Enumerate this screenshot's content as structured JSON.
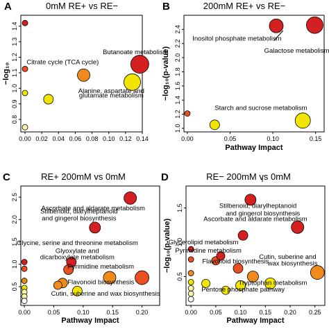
{
  "colors": {
    "dark_red": "#d42020",
    "red_orange": "#e8501f",
    "orange": "#f08a1c",
    "yellow": "#f2e600",
    "pale_yellow": "#fbf7a8",
    "white": "#ffffff",
    "edge": "#000000"
  },
  "chart_data": [
    {
      "type": "scatter",
      "letter": "A",
      "title": "0mM RE+ vs RE−",
      "xlabel": "",
      "ylabel": "−log₁₀",
      "xlim": [
        -0.005,
        0.14
      ],
      "ylim": [
        0.72,
        1.47
      ],
      "xticks": [
        "0.00",
        "0.02",
        "0.04",
        "0.06",
        "0.08",
        "0.10",
        "0.12",
        "0.14"
      ],
      "yticks": [
        "0.8",
        "0.9",
        "1.0",
        "1.1",
        "1.2",
        "1.3",
        "1.4"
      ],
      "points": [
        {
          "x": 0.0,
          "y": 1.42,
          "size": 4,
          "color": "#d42020"
        },
        {
          "x": 0.0,
          "y": 1.125,
          "size": 4,
          "color": "#e8501f"
        },
        {
          "x": 0.0,
          "y": 0.97,
          "size": 4,
          "color": "#f2e600"
        },
        {
          "x": 0.0,
          "y": 0.75,
          "size": 4,
          "color": "#fbf7a8"
        },
        {
          "x": 0.028,
          "y": 0.93,
          "size": 7,
          "color": "#f2e600"
        },
        {
          "x": 0.07,
          "y": 1.085,
          "size": 9,
          "color": "#f08a1c"
        },
        {
          "x": 0.128,
          "y": 1.04,
          "size": 12,
          "color": "#f2e600"
        },
        {
          "x": 0.137,
          "y": 1.155,
          "size": 13,
          "color": "#d42020"
        }
      ],
      "annotations": [
        {
          "text": "Butanoate metabolism",
          "x": 0.132,
          "y": 1.22
        },
        {
          "text": "Citrate cycle (TCA cycle)",
          "x": 0.045,
          "y": 1.155
        },
        {
          "text": "Alanine, aspartate and",
          "x": 0.103,
          "y": 0.97
        },
        {
          "text": "glutamate metabolism",
          "x": 0.103,
          "y": 0.94
        }
      ]
    },
    {
      "type": "scatter",
      "letter": "B",
      "title": "200mM RE+ vs RE−",
      "xlabel": "Pathway Impact",
      "ylabel": "−log₁₀(p-value)",
      "xlim": [
        -0.004,
        0.16
      ],
      "ylim": [
        0.95,
        2.6
      ],
      "xticks": [
        "0.00",
        "0.05",
        "0.10",
        "0.15"
      ],
      "yticks": [
        "1.0",
        "1.2",
        "1.4",
        "1.6",
        "1.8",
        "2.0",
        "2.2",
        "2.4"
      ],
      "points": [
        {
          "x": 0.0,
          "y": 1.21,
          "size": 4,
          "color": "#e8501f"
        },
        {
          "x": 0.032,
          "y": 1.05,
          "size": 7,
          "color": "#f2e600"
        },
        {
          "x": 0.104,
          "y": 2.45,
          "size": 10,
          "color": "#d42020"
        },
        {
          "x": 0.135,
          "y": 1.11,
          "size": 11,
          "color": "#f2e600"
        },
        {
          "x": 0.149,
          "y": 2.46,
          "size": 12,
          "color": "#d42020"
        }
      ],
      "annotations": [
        {
          "text": "Inositol phosphate metabolism",
          "x": 0.058,
          "y": 2.24
        },
        {
          "text": "Galactose metabolism",
          "x": 0.128,
          "y": 2.07
        },
        {
          "text": "Starch and sucrose metabolism",
          "x": 0.086,
          "y": 1.26
        }
      ]
    },
    {
      "type": "scatter",
      "letter": "C",
      "title": "RE+ 200mM vs 0mM",
      "xlabel": "Pathway Impact",
      "ylabel": "",
      "xlim": [
        -0.006,
        0.23
      ],
      "ylim": [
        0.08,
        2.75
      ],
      "xticks": [
        "0.00",
        "0.05",
        "0.10",
        "0.15",
        "0.20"
      ],
      "yticks": [
        "0.5",
        "1.0",
        "1.5",
        "2.0",
        "2.5"
      ],
      "points": [
        {
          "x": 0.0,
          "y": 1.05,
          "size": 4,
          "color": "#d42020"
        },
        {
          "x": 0.0,
          "y": 0.9,
          "size": 4,
          "color": "#e8501f"
        },
        {
          "x": 0.0,
          "y": 0.63,
          "size": 4,
          "color": "#f08a1c"
        },
        {
          "x": 0.0,
          "y": 0.47,
          "size": 4,
          "color": "#f2e600"
        },
        {
          "x": 0.0,
          "y": 0.38,
          "size": 4,
          "color": "#fbf7a8"
        },
        {
          "x": 0.0,
          "y": 0.28,
          "size": 4,
          "color": "#fbf7a8"
        },
        {
          "x": 0.0,
          "y": 0.18,
          "size": 4,
          "color": "#ffffff"
        },
        {
          "x": 0.057,
          "y": 0.53,
          "size": 6,
          "color": "#f08a1c"
        },
        {
          "x": 0.065,
          "y": 0.58,
          "size": 7,
          "color": "#f08a1c"
        },
        {
          "x": 0.075,
          "y": 0.88,
          "size": 7,
          "color": "#e8501f"
        },
        {
          "x": 0.08,
          "y": 1.05,
          "size": 7,
          "color": "#d42020"
        },
        {
          "x": 0.09,
          "y": 0.4,
          "size": 7,
          "color": "#f2e600"
        },
        {
          "x": 0.12,
          "y": 1.82,
          "size": 8,
          "color": "#d42020"
        },
        {
          "x": 0.145,
          "y": 0.7,
          "size": 9,
          "color": "#f08a1c"
        },
        {
          "x": 0.18,
          "y": 2.48,
          "size": 9,
          "color": "#d42020"
        },
        {
          "x": 0.2,
          "y": 0.7,
          "size": 10,
          "color": "#e8501f"
        }
      ],
      "annotations": [
        {
          "text": "Ascorbate and aldarate metabolism",
          "x": 0.117,
          "y": 2.21
        },
        {
          "text": "Stilbenoid, diarylheptanoid",
          "x": 0.093,
          "y": 2.14
        },
        {
          "text": "and gingerol biosynthesis",
          "x": 0.093,
          "y": 1.98
        },
        {
          "text": "Glycine, serine and threonine metabolism",
          "x": 0.09,
          "y": 1.43
        },
        {
          "text": "Glyoxylate and",
          "x": 0.09,
          "y": 1.25
        },
        {
          "text": "dicarboxylate metabolism",
          "x": 0.09,
          "y": 1.11
        },
        {
          "text": "Pyrimidine metabolism",
          "x": 0.13,
          "y": 0.9
        },
        {
          "text": "Flavonoid biosynthesis",
          "x": 0.13,
          "y": 0.55
        },
        {
          "text": "Cutin, suberine and wax biosynthesis",
          "x": 0.138,
          "y": 0.3
        }
      ]
    },
    {
      "type": "scatter",
      "letter": "D",
      "title": "RE− 200mM vs 0mM",
      "xlabel": "Pathway Impact",
      "ylabel": "−log₁₀(p-value)",
      "xlim": [
        -0.01,
        0.27
      ],
      "ylim": [
        0.08,
        1.82
      ],
      "xticks": [
        "0.00",
        "0.05",
        "0.10",
        "0.15",
        "0.20",
        "0.25"
      ],
      "yticks": [
        "0.5",
        "1.0",
        "1.5"
      ],
      "points": [
        {
          "x": 0.0,
          "y": 0.9,
          "size": 4,
          "color": "#d42020"
        },
        {
          "x": 0.0,
          "y": 0.75,
          "size": 4,
          "color": "#e8501f"
        },
        {
          "x": 0.0,
          "y": 0.55,
          "size": 4,
          "color": "#f08a1c"
        },
        {
          "x": 0.0,
          "y": 0.42,
          "size": 4,
          "color": "#f2e600"
        },
        {
          "x": 0.0,
          "y": 0.33,
          "size": 4,
          "color": "#fbf7a8"
        },
        {
          "x": 0.0,
          "y": 0.25,
          "size": 4,
          "color": "#fbf7a8"
        },
        {
          "x": 0.0,
          "y": 0.17,
          "size": 4,
          "color": "#ffffff"
        },
        {
          "x": 0.03,
          "y": 0.4,
          "size": 6,
          "color": "#f2e600"
        },
        {
          "x": 0.05,
          "y": 0.73,
          "size": 6,
          "color": "#e8501f"
        },
        {
          "x": 0.06,
          "y": 0.8,
          "size": 6,
          "color": "#d42020"
        },
        {
          "x": 0.07,
          "y": 0.3,
          "size": 6,
          "color": "#f2e600"
        },
        {
          "x": 0.095,
          "y": 0.62,
          "size": 7,
          "color": "#e8501f"
        },
        {
          "x": 0.1,
          "y": 0.37,
          "size": 7,
          "color": "#f2e600"
        },
        {
          "x": 0.105,
          "y": 1.1,
          "size": 7,
          "color": "#d42020"
        },
        {
          "x": 0.12,
          "y": 1.62,
          "size": 8,
          "color": "#d42020"
        },
        {
          "x": 0.125,
          "y": 0.5,
          "size": 8,
          "color": "#f08a1c"
        },
        {
          "x": 0.16,
          "y": 0.4,
          "size": 8,
          "color": "#f2e600"
        },
        {
          "x": 0.215,
          "y": 1.22,
          "size": 9,
          "color": "#d42020"
        },
        {
          "x": 0.255,
          "y": 0.56,
          "size": 10,
          "color": "#f08a1c"
        }
      ],
      "annotations": [
        {
          "text": "Stilbenoid, diarylheptanoid",
          "x": 0.135,
          "y": 1.5
        },
        {
          "text": "and gingerol biosynthesis",
          "x": 0.145,
          "y": 1.39
        },
        {
          "text": "Ascorbate and aldarate metabolism",
          "x": 0.13,
          "y": 1.31
        },
        {
          "text": "Glycerolipid metabolism",
          "x": 0.025,
          "y": 0.97
        },
        {
          "text": "Pyrimidine metabolism",
          "x": 0.035,
          "y": 0.85
        },
        {
          "text": "Flavonoid biosynthesis",
          "x": 0.09,
          "y": 0.69
        },
        {
          "text": "Cutin, suberine and",
          "x": 0.195,
          "y": 0.76
        },
        {
          "text": "wax biosynthesis",
          "x": 0.205,
          "y": 0.66
        },
        {
          "text": "Tryptophan metabolism",
          "x": 0.165,
          "y": 0.38
        },
        {
          "text": "Pentose phosphate pathway",
          "x": 0.105,
          "y": 0.28
        }
      ]
    }
  ]
}
